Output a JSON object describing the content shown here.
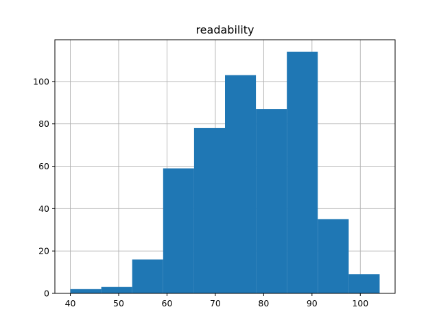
{
  "chart_data": {
    "type": "bar",
    "title": "readability",
    "xlabel": "",
    "ylabel": "",
    "bins": [
      {
        "x0": 40.0,
        "x1": 46.4,
        "count": 2
      },
      {
        "x0": 46.4,
        "x1": 52.8,
        "count": 3
      },
      {
        "x0": 52.8,
        "x1": 59.2,
        "count": 16
      },
      {
        "x0": 59.2,
        "x1": 65.6,
        "count": 59
      },
      {
        "x0": 65.6,
        "x1": 72.0,
        "count": 78
      },
      {
        "x0": 72.0,
        "x1": 78.4,
        "count": 103
      },
      {
        "x0": 78.4,
        "x1": 84.8,
        "count": 87
      },
      {
        "x0": 84.8,
        "x1": 91.2,
        "count": 114
      },
      {
        "x0": 91.2,
        "x1": 97.6,
        "count": 35
      },
      {
        "x0": 97.6,
        "x1": 104.0,
        "count": 9
      }
    ],
    "xlim": [
      36.8,
      107.2
    ],
    "ylim": [
      0,
      119.7
    ],
    "xticks": [
      40,
      50,
      60,
      70,
      80,
      90,
      100
    ],
    "yticks": [
      0,
      20,
      40,
      60,
      80,
      100
    ],
    "grid": true,
    "bar_color": "#1f77b4"
  }
}
